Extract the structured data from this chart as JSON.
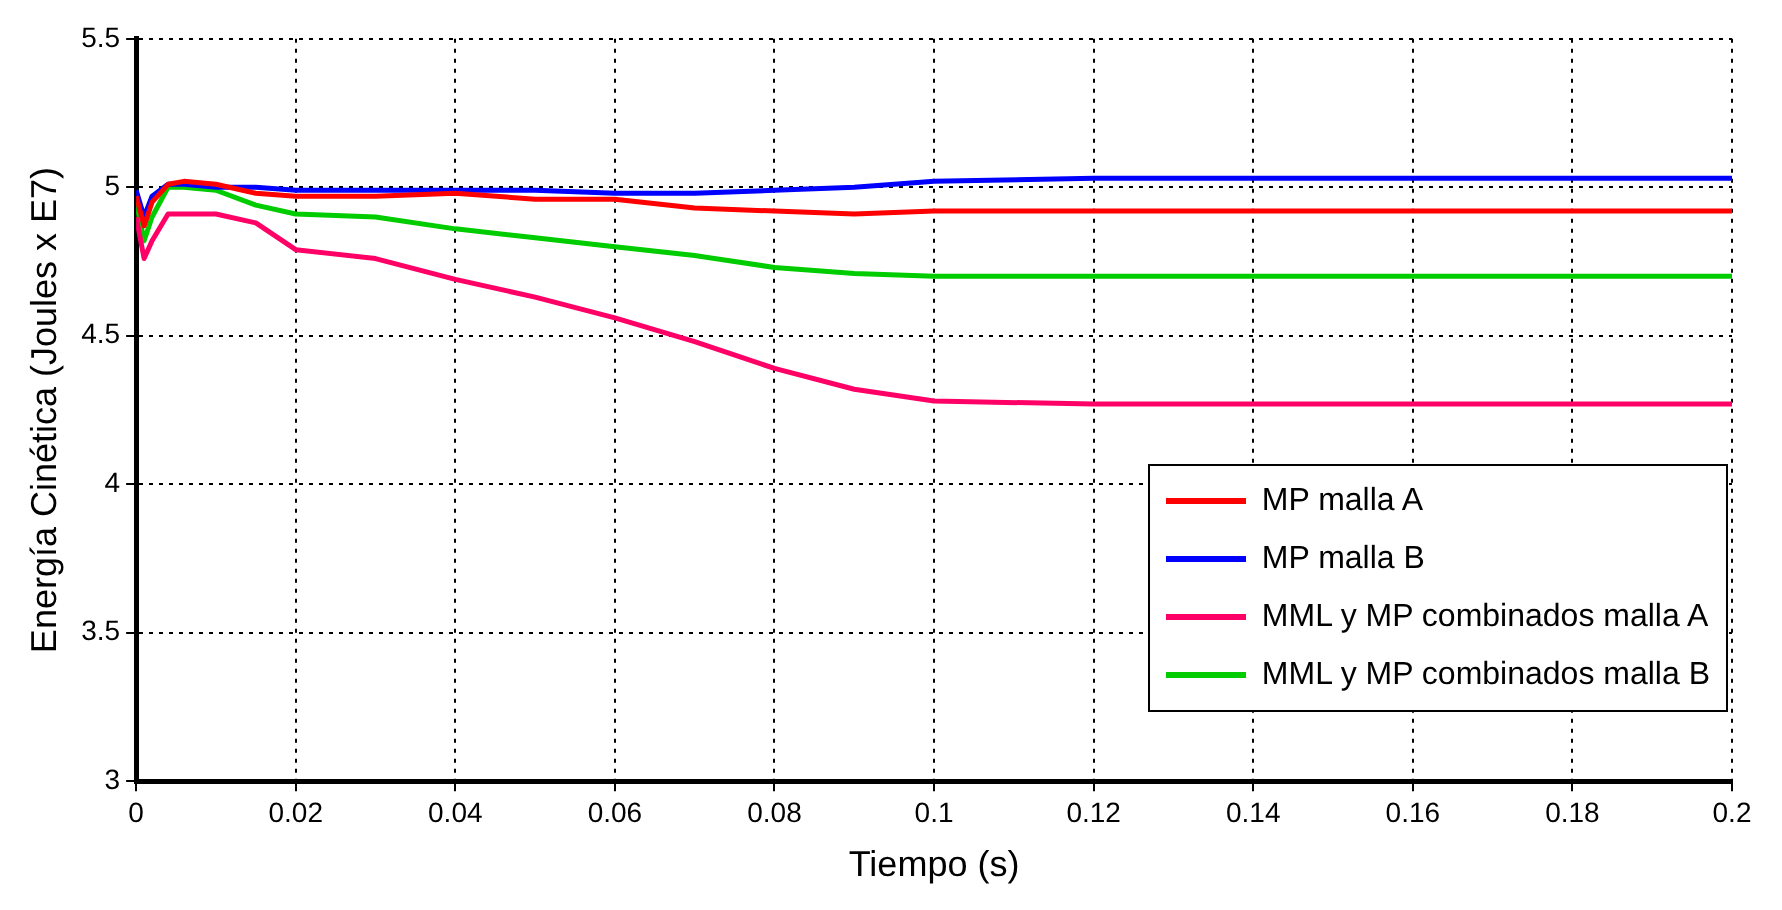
{
  "chart_data": {
    "type": "line",
    "xlabel": "Tiempo (s)",
    "ylabel": "Energía Cinética (Joules x E7)",
    "xlim": [
      0,
      0.2
    ],
    "xticks": [
      0,
      0.02,
      0.04,
      0.06,
      0.08,
      0.1,
      0.12,
      0.14,
      0.16,
      0.18,
      0.2
    ],
    "ylim": [
      3,
      5.5
    ],
    "yticks": [
      3,
      3.5,
      4,
      4.5,
      5,
      5.5
    ],
    "grid": true,
    "legend": "bottom right",
    "x": [
      0,
      0.001,
      0.002,
      0.004,
      0.006,
      0.01,
      0.015,
      0.02,
      0.03,
      0.04,
      0.05,
      0.06,
      0.07,
      0.08,
      0.09,
      0.1,
      0.12,
      0.14,
      0.16,
      0.18,
      0.2
    ],
    "series": [
      {
        "name": "MP malla A",
        "color": "#ff0000",
        "values": [
          4.97,
          4.87,
          4.95,
          5.01,
          5.02,
          5.01,
          4.98,
          4.97,
          4.97,
          4.98,
          4.96,
          4.96,
          4.93,
          4.92,
          4.91,
          4.92,
          4.92,
          4.92,
          4.92,
          4.92,
          4.92
        ]
      },
      {
        "name": "MP malla B",
        "color": "#0000ff",
        "values": [
          4.99,
          4.9,
          4.97,
          5.01,
          5.01,
          5.0,
          5.0,
          4.99,
          4.99,
          4.99,
          4.99,
          4.98,
          4.98,
          4.99,
          5.0,
          5.02,
          5.03,
          5.03,
          5.03,
          5.03,
          5.03
        ]
      },
      {
        "name": "MML y MP combinados malla A",
        "color": "#ff0066",
        "values": [
          4.9,
          4.76,
          4.82,
          4.91,
          4.91,
          4.91,
          4.88,
          4.79,
          4.76,
          4.69,
          4.63,
          4.56,
          4.48,
          4.39,
          4.32,
          4.28,
          4.27,
          4.27,
          4.27,
          4.27,
          4.27
        ]
      },
      {
        "name": "MML y MP combinados malla B",
        "color": "#00cc00",
        "values": [
          4.95,
          4.82,
          4.9,
          5.0,
          5.0,
          4.99,
          4.94,
          4.91,
          4.9,
          4.86,
          4.83,
          4.8,
          4.77,
          4.73,
          4.71,
          4.7,
          4.7,
          4.7,
          4.7,
          4.7,
          4.7
        ]
      }
    ]
  }
}
